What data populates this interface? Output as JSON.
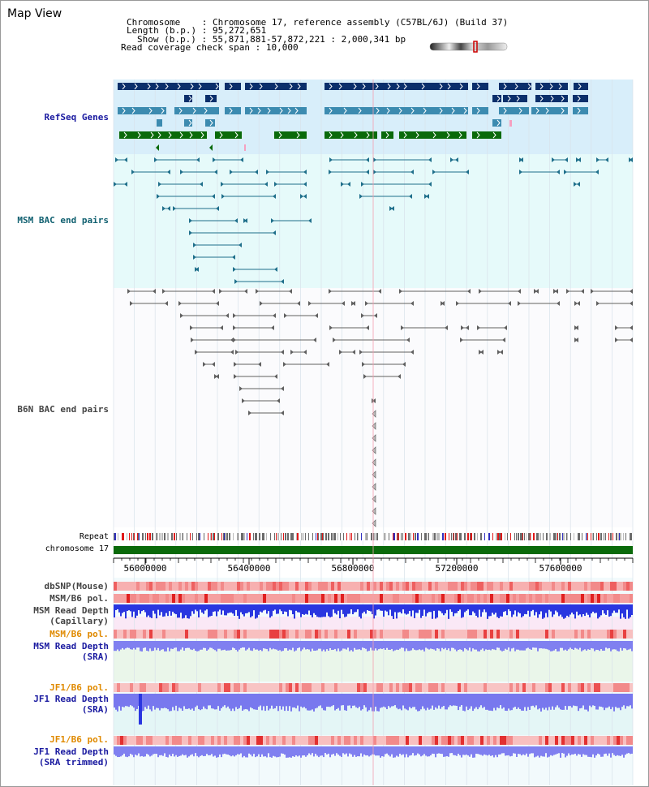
{
  "app": {
    "title": "Map View"
  },
  "info": {
    "chromosome_label": "Chromosome",
    "chromosome_value": "Chromosome 17, reference assembly (C57BL/6J) (Build 37)",
    "length_label": "Length (b.p.)",
    "length_value": "95,272,651",
    "show_label": "Show (b.p.)",
    "show_value": "55,871,881-57,872,221 : 2,000,341 bp",
    "coverage_label": "Read coverage check span",
    "coverage_value": "10,000"
  },
  "tracks": {
    "refseq": "RefSeq Genes",
    "msm_bac": "MSM BAC end pairs",
    "b6n_bac": "B6N BAC end pairs",
    "repeat": "Repeat",
    "chromosome": "chromosome 17"
  },
  "axis": {
    "ticks": [
      "56000000",
      "56400000",
      "56800000",
      "57200000",
      "57600000"
    ]
  },
  "bottom_tracks": {
    "dbsnp": "dbSNP(Mouse)",
    "msm_b6_pol_1": "MSM/B6 pol.",
    "msm_depth_cap_1": "MSM Read Depth",
    "msm_depth_cap_2": "(Capillary)",
    "msm_b6_pol_2": "MSM/B6 pol.",
    "msm_depth_sra_1": "MSM Read Depth",
    "msm_depth_sra_2": "(SRA)",
    "jf1_b6_pol_1": "JF1/B6 pol.",
    "jf1_depth_sra_1": "JF1 Read Depth",
    "jf1_depth_sra_2": "(SRA)",
    "jf1_b6_pol_2": "JF1/B6 pol.",
    "jf1_trim_1": "JF1 Read Depth",
    "jf1_trim_2": "(SRA trimmed)"
  },
  "colors": {
    "navy": "#0b2f6b",
    "teal": "#3c8bb0",
    "green": "#0a6a0a",
    "msm": "#1f6f8b",
    "b6n": "#606060",
    "label_blue": "#1a1aa0",
    "label_teal": "#106070",
    "label_orange": "#e08a00",
    "pol_red": "#e23030"
  }
}
